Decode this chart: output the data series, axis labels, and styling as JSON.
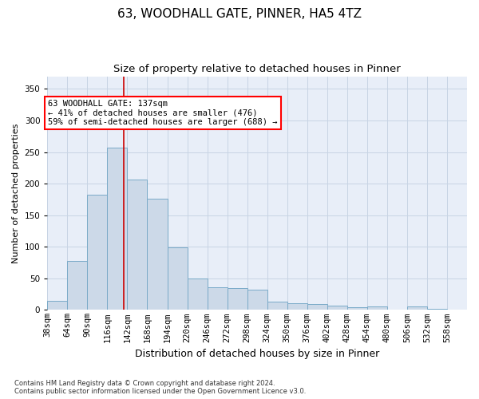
{
  "title": "63, WOODHALL GATE, PINNER, HA5 4TZ",
  "subtitle": "Size of property relative to detached houses in Pinner",
  "xlabel": "Distribution of detached houses by size in Pinner",
  "ylabel": "Number of detached properties",
  "bar_color": "#ccd9e8",
  "bar_edge_color": "#7aaac8",
  "background_color": "#ffffff",
  "plot_bg_color": "#e8eef8",
  "grid_color": "#c8d4e4",
  "annotation_text": "63 WOODHALL GATE: 137sqm\n← 41% of detached houses are smaller (476)\n59% of semi-detached houses are larger (688) →",
  "vline_x": 137,
  "vline_color": "#cc0000",
  "categories": [
    "38sqm",
    "64sqm",
    "90sqm",
    "116sqm",
    "142sqm",
    "168sqm",
    "194sqm",
    "220sqm",
    "246sqm",
    "272sqm",
    "298sqm",
    "324sqm",
    "350sqm",
    "376sqm",
    "402sqm",
    "428sqm",
    "454sqm",
    "480sqm",
    "506sqm",
    "532sqm",
    "558sqm"
  ],
  "bin_edges": [
    38,
    64,
    90,
    116,
    142,
    168,
    194,
    220,
    246,
    272,
    298,
    324,
    350,
    376,
    402,
    428,
    454,
    480,
    506,
    532,
    558,
    584
  ],
  "values": [
    15,
    77,
    182,
    257,
    207,
    176,
    99,
    50,
    36,
    35,
    32,
    13,
    10,
    9,
    7,
    4,
    6,
    1,
    5,
    2,
    1
  ],
  "ylim": [
    0,
    370
  ],
  "yticks": [
    0,
    50,
    100,
    150,
    200,
    250,
    300,
    350
  ],
  "footer": "Contains HM Land Registry data © Crown copyright and database right 2024.\nContains public sector information licensed under the Open Government Licence v3.0.",
  "title_fontsize": 11,
  "subtitle_fontsize": 9.5,
  "xlabel_fontsize": 9,
  "ylabel_fontsize": 8,
  "tick_fontsize": 7.5,
  "annot_fontsize": 7.5
}
